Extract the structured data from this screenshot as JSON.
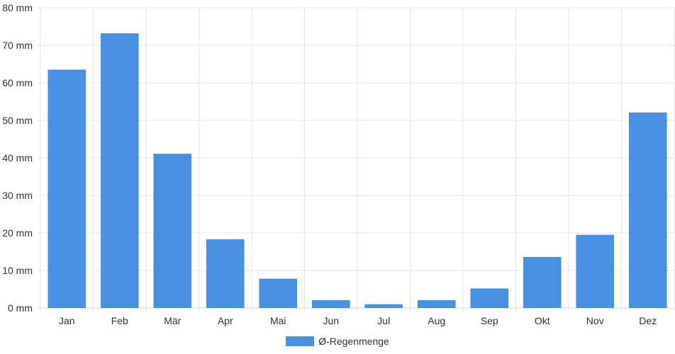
{
  "chart_data": {
    "type": "bar",
    "categories": [
      "Jan",
      "Feb",
      "Mär",
      "Apr",
      "Mai",
      "Jun",
      "Jul",
      "Aug",
      "Sep",
      "Okt",
      "Nov",
      "Dez"
    ],
    "series": [
      {
        "name": "Ø-Regenmenge",
        "values": [
          63.5,
          73.2,
          41.1,
          18.3,
          7.8,
          2.1,
          1.0,
          2.1,
          5.2,
          13.6,
          19.5,
          52.1
        ],
        "color": "#4a90e2"
      }
    ],
    "y_tick_labels": [
      "0 mm",
      "10 mm",
      "20 mm",
      "30 mm",
      "40 mm",
      "50 mm",
      "60 mm",
      "70 mm",
      "80 mm"
    ],
    "ylim": [
      0,
      80
    ],
    "y_step": 10,
    "grid": true,
    "legend_position": "bottom"
  }
}
